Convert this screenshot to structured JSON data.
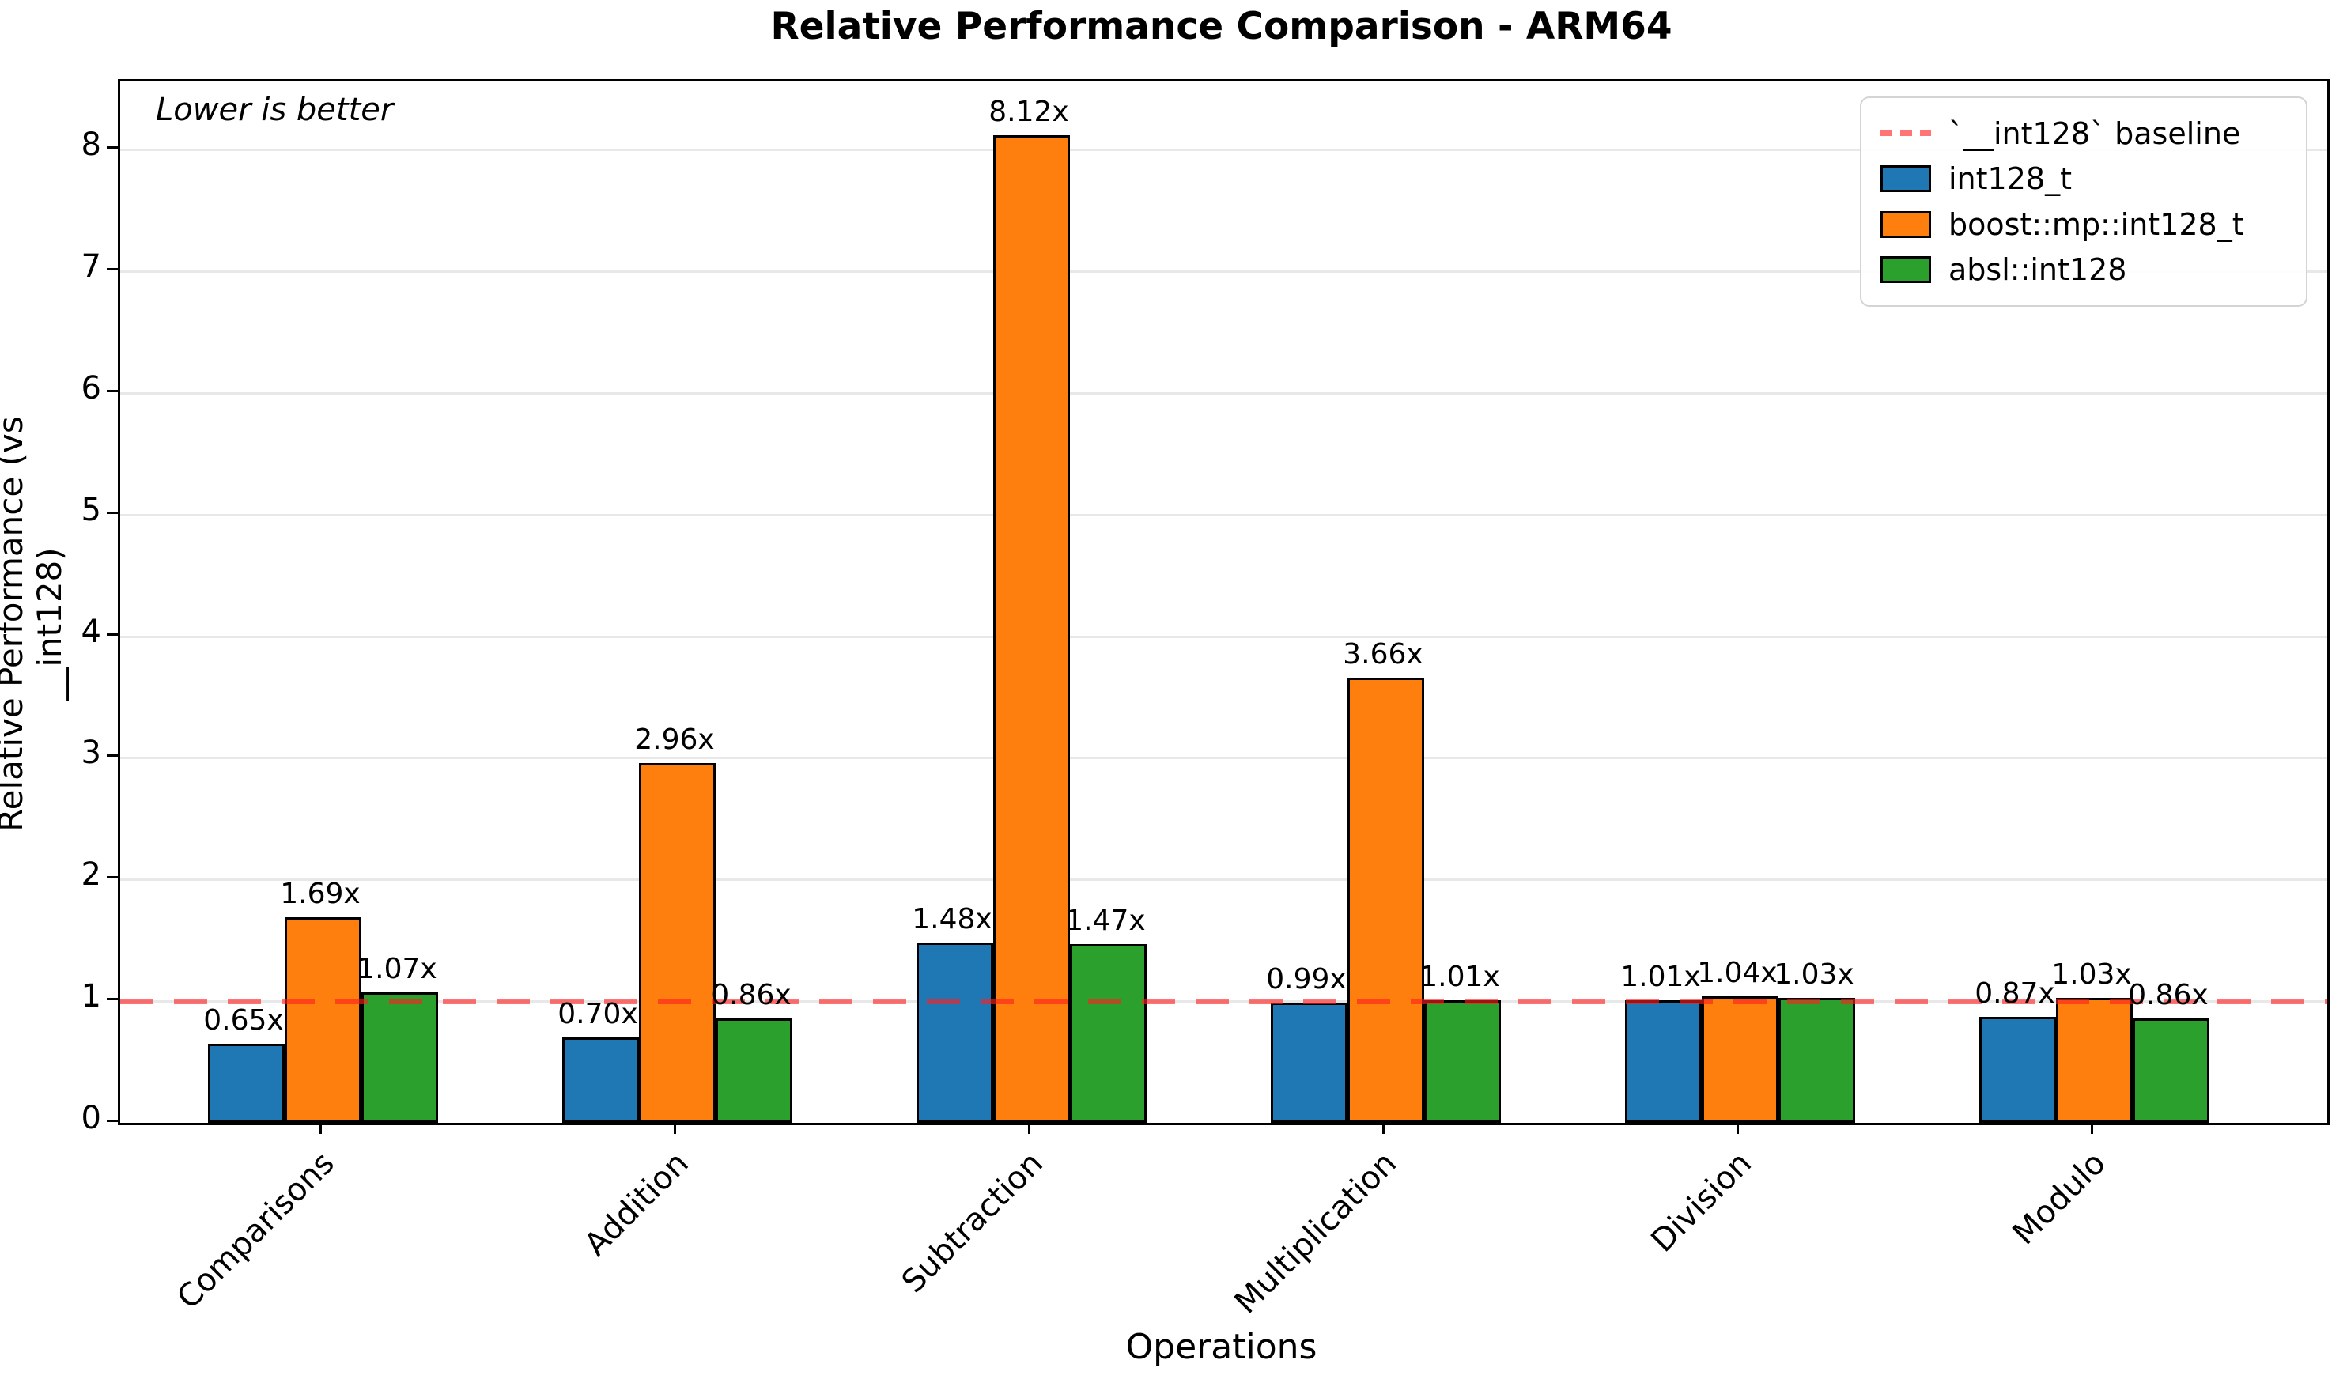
{
  "title": "Relative Performance Comparison - ARM64",
  "annotation": "Lower is better",
  "chart_data": {
    "type": "bar",
    "title": "Relative Performance Comparison - ARM64",
    "xlabel": "Operations",
    "ylabel": "Relative Performance (vs __int128)",
    "categories": [
      "Comparisons",
      "Addition",
      "Subtraction",
      "Multiplication",
      "Division",
      "Modulo"
    ],
    "series": [
      {
        "name": "int128_t",
        "color": "#1f77b4",
        "values": [
          0.65,
          0.7,
          1.48,
          0.99,
          1.01,
          0.87
        ]
      },
      {
        "name": "boost::mp::int128_t",
        "color": "#ff7f0e",
        "values": [
          1.69,
          2.96,
          8.12,
          3.66,
          1.04,
          1.03
        ]
      },
      {
        "name": "absl::int128",
        "color": "#2ca02c",
        "values": [
          1.07,
          0.86,
          1.47,
          1.01,
          1.03,
          0.86
        ]
      }
    ],
    "bar_label_suffix": "x",
    "baseline": {
      "value": 1.0,
      "label": "`__int128` baseline",
      "color": "rgba(255,30,30,0.62)",
      "style": "dashed"
    },
    "ylim": [
      0,
      8.56
    ],
    "yticks": [
      0,
      1,
      2,
      3,
      4,
      5,
      6,
      7,
      8
    ],
    "grid": true,
    "legend_position": "upper right",
    "legend_labels": {
      "baseline": "`__int128` baseline",
      "series0": "int128_t",
      "series1": "boost::mp::int128_t",
      "series2": "absl::int128"
    }
  }
}
